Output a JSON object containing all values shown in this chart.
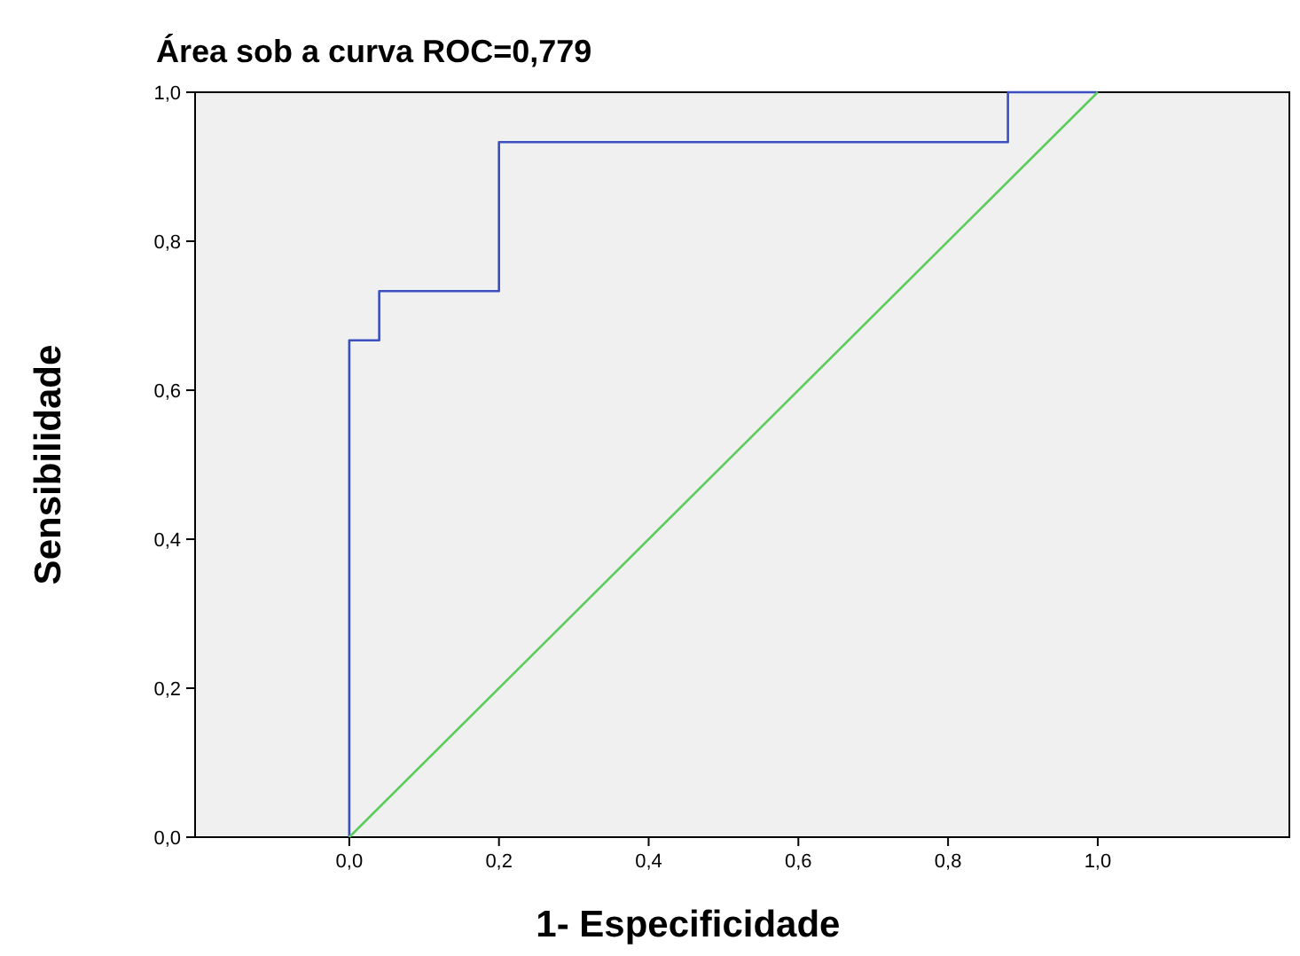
{
  "chart_data": {
    "type": "line",
    "title": "Área sob a curva ROC=0,779",
    "xlabel": "1- Especificidade",
    "ylabel": "Sensibilidade",
    "xlim": [
      -0.206,
      1.256
    ],
    "ylim": [
      0,
      1
    ],
    "xticks": [
      {
        "value": 0,
        "label": "0,0"
      },
      {
        "value": 0.2,
        "label": "0,2"
      },
      {
        "value": 0.4,
        "label": "0,4"
      },
      {
        "value": 0.6,
        "label": "0,6"
      },
      {
        "value": 0.8,
        "label": "0,8"
      },
      {
        "value": 1,
        "label": "1,0"
      }
    ],
    "yticks": [
      {
        "value": 0,
        "label": "0,0"
      },
      {
        "value": 0.2,
        "label": "0,2"
      },
      {
        "value": 0.4,
        "label": "0,4"
      },
      {
        "value": 0.6,
        "label": "0,6"
      },
      {
        "value": 0.8,
        "label": "0,8"
      },
      {
        "value": 1,
        "label": "1,0"
      }
    ],
    "grid": false,
    "series": [
      {
        "color": "#3c4fc0",
        "x": [
          0,
          0,
          0.04,
          0.04,
          0.2,
          0.2,
          0.88,
          0.88,
          1
        ],
        "values": [
          0,
          0.667,
          0.667,
          0.733,
          0.733,
          0.933,
          0.933,
          1,
          1
        ]
      },
      {
        "color": "#5ccc5c",
        "x": [
          0,
          1
        ],
        "values": [
          0,
          1
        ]
      }
    ]
  }
}
